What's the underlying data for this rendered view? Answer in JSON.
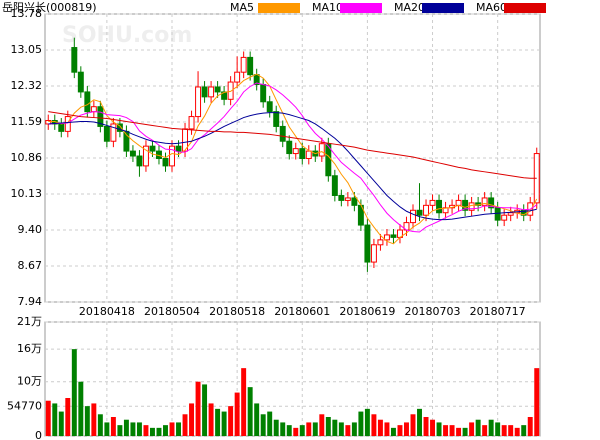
{
  "chart_data": [
    {
      "type": "candlestick",
      "title": "岳阳兴长(000819)",
      "watermark": "SOHU.com",
      "categories": [
        null,
        null,
        null,
        null,
        null,
        null,
        null,
        null,
        null,
        "20180418",
        null,
        null,
        null,
        null,
        null,
        null,
        null,
        null,
        null,
        "20180504",
        null,
        null,
        null,
        null,
        null,
        null,
        null,
        null,
        null,
        "20180518",
        null,
        null,
        null,
        null,
        null,
        null,
        null,
        null,
        null,
        "20180601",
        null,
        null,
        null,
        null,
        null,
        null,
        null,
        null,
        null,
        "20180619",
        null,
        null,
        null,
        null,
        null,
        null,
        null,
        null,
        null,
        "20180703",
        null,
        null,
        null,
        null,
        null,
        null,
        null,
        null,
        null,
        "20180717",
        null,
        null,
        null,
        null,
        null,
        null
      ],
      "open": [
        11.55,
        11.62,
        11.55,
        11.4,
        13.1,
        12.6,
        12.2,
        11.8,
        11.9,
        11.5,
        11.2,
        11.55,
        11.4,
        11.0,
        10.9,
        10.7,
        11.1,
        11.0,
        10.85,
        10.7,
        11.1,
        11.0,
        11.45,
        11.7,
        12.3,
        12.1,
        12.3,
        12.2,
        12.05,
        12.4,
        12.6,
        12.9,
        12.55,
        12.35,
        12.0,
        11.8,
        11.5,
        11.2,
        10.95,
        11.05,
        10.85,
        11.0,
        10.9,
        11.15,
        10.5,
        10.1,
        10.0,
        10.05,
        9.9,
        9.5,
        8.75,
        9.1,
        9.2,
        9.3,
        9.25,
        9.4,
        9.55,
        9.8,
        9.7,
        9.9,
        10.0,
        9.75,
        9.85,
        9.9,
        10.0,
        9.8,
        9.95,
        9.9,
        10.05,
        9.85,
        9.6,
        9.7,
        9.75,
        9.8,
        9.7,
        9.95
      ],
      "high": [
        11.74,
        11.74,
        11.67,
        11.82,
        13.3,
        12.72,
        12.32,
        12.02,
        12.02,
        11.62,
        11.67,
        11.67,
        11.52,
        11.12,
        11.02,
        11.22,
        11.22,
        11.12,
        10.97,
        11.22,
        11.22,
        11.57,
        11.82,
        12.62,
        12.42,
        12.42,
        12.42,
        12.32,
        12.52,
        12.92,
        13.02,
        13.02,
        12.67,
        12.47,
        12.12,
        11.92,
        11.62,
        11.32,
        11.17,
        11.17,
        11.12,
        11.12,
        11.27,
        11.27,
        10.62,
        10.22,
        10.17,
        10.17,
        10.02,
        9.62,
        9.22,
        9.32,
        9.42,
        9.42,
        9.52,
        9.67,
        9.92,
        10.35,
        10.02,
        10.12,
        10.12,
        9.97,
        10.02,
        10.12,
        10.12,
        10.07,
        10.07,
        10.17,
        10.17,
        9.97,
        9.82,
        9.87,
        9.92,
        9.92,
        10.07,
        11.07
      ],
      "low": [
        11.43,
        11.43,
        11.28,
        11.28,
        12.48,
        12.08,
        11.68,
        11.68,
        11.38,
        11.08,
        11.08,
        11.28,
        10.88,
        10.78,
        10.48,
        10.58,
        10.88,
        10.73,
        10.58,
        10.58,
        10.88,
        10.88,
        11.33,
        11.58,
        11.98,
        11.98,
        12.08,
        11.93,
        11.93,
        12.28,
        12.48,
        12.43,
        12.23,
        11.88,
        11.68,
        11.38,
        11.08,
        10.83,
        10.83,
        10.73,
        10.73,
        10.78,
        10.78,
        10.38,
        9.98,
        9.88,
        9.88,
        9.78,
        9.38,
        8.55,
        8.63,
        8.98,
        9.08,
        9.13,
        9.13,
        9.28,
        9.43,
        9.58,
        9.58,
        9.78,
        9.63,
        9.63,
        9.73,
        9.78,
        9.68,
        9.68,
        9.78,
        9.78,
        9.73,
        9.48,
        9.48,
        9.58,
        9.63,
        9.58,
        9.58,
        9.83
      ],
      "close": [
        11.62,
        11.55,
        11.4,
        11.7,
        12.6,
        12.2,
        11.8,
        11.9,
        11.5,
        11.2,
        11.55,
        11.4,
        11.0,
        10.9,
        10.7,
        11.1,
        11.0,
        10.85,
        10.7,
        11.1,
        11.0,
        11.45,
        11.7,
        12.3,
        12.1,
        12.3,
        12.2,
        12.05,
        12.4,
        12.6,
        12.9,
        12.55,
        12.35,
        12.0,
        11.8,
        11.5,
        11.2,
        10.95,
        11.05,
        10.85,
        11.0,
        10.9,
        11.15,
        10.5,
        10.1,
        10.0,
        10.05,
        9.9,
        9.5,
        8.75,
        9.1,
        9.2,
        9.3,
        9.25,
        9.4,
        9.55,
        9.8,
        9.7,
        9.9,
        10.0,
        9.75,
        9.85,
        9.9,
        10.0,
        9.8,
        9.95,
        9.9,
        10.05,
        9.85,
        9.6,
        9.7,
        9.75,
        9.8,
        9.7,
        9.95,
        10.95
      ],
      "up_color": "#ff0000",
      "down_color": "#008000",
      "series": [
        {
          "name": "MA5",
          "color": "#ff9900",
          "values": [
            11.6,
            11.6,
            11.55,
            11.58,
            11.77,
            11.89,
            11.94,
            12.04,
            12.0,
            11.72,
            11.59,
            11.51,
            11.33,
            11.21,
            11.11,
            11.02,
            10.94,
            10.91,
            10.87,
            10.95,
            10.93,
            11.02,
            11.19,
            11.51,
            11.71,
            11.97,
            12.12,
            12.19,
            12.21,
            12.31,
            12.43,
            12.5,
            12.56,
            12.48,
            12.32,
            12.04,
            11.77,
            11.49,
            11.3,
            11.11,
            11.01,
            10.95,
            10.99,
            10.9,
            10.74,
            10.53,
            10.36,
            10.11,
            9.91,
            9.64,
            9.46,
            9.29,
            9.17,
            9.12,
            9.25,
            9.34,
            9.46,
            9.54,
            9.67,
            9.79,
            9.83,
            9.84,
            9.86,
            9.9,
            9.86,
            9.9,
            9.91,
            9.94,
            9.91,
            9.87,
            9.83,
            9.79,
            9.74,
            9.71,
            9.78,
            10.03
          ]
        },
        {
          "name": "MA10",
          "color": "#ff00ff",
          "values": [
            11.55,
            11.56,
            11.56,
            11.57,
            11.65,
            11.73,
            11.77,
            11.8,
            11.79,
            11.74,
            11.73,
            11.72,
            11.68,
            11.6,
            11.41,
            11.3,
            11.22,
            11.12,
            11.04,
            11.03,
            10.98,
            10.98,
            11.05,
            11.23,
            11.33,
            11.45,
            11.57,
            11.7,
            11.86,
            12.01,
            12.2,
            12.31,
            12.38,
            12.35,
            12.32,
            12.24,
            12.14,
            12.02,
            11.89,
            11.72,
            11.52,
            11.36,
            11.24,
            11.1,
            10.93,
            10.77,
            10.66,
            10.55,
            10.45,
            10.27,
            10.1,
            9.91,
            9.74,
            9.61,
            9.5,
            9.4,
            9.37,
            9.36,
            9.46,
            9.52,
            9.58,
            9.65,
            9.71,
            9.78,
            9.83,
            9.83,
            9.84,
            9.89,
            9.88,
            9.86,
            9.85,
            9.85,
            9.84,
            9.81,
            9.82,
            9.91
          ]
        },
        {
          "name": "MA20",
          "color": "#000099",
          "values": [
            11.55,
            11.56,
            11.57,
            11.58,
            11.59,
            11.6,
            11.6,
            11.59,
            11.56,
            11.52,
            11.48,
            11.44,
            11.4,
            11.34,
            11.29,
            11.24,
            11.2,
            11.18,
            11.16,
            11.15,
            11.16,
            11.18,
            11.2,
            11.25,
            11.3,
            11.36,
            11.43,
            11.5,
            11.56,
            11.62,
            11.68,
            11.72,
            11.75,
            11.77,
            11.78,
            11.78,
            11.77,
            11.74,
            11.7,
            11.66,
            11.62,
            11.55,
            11.46,
            11.36,
            11.26,
            11.14,
            11.0,
            10.85,
            10.7,
            10.55,
            10.4,
            10.25,
            10.1,
            9.98,
            9.87,
            9.78,
            9.72,
            9.67,
            9.64,
            9.62,
            9.61,
            9.61,
            9.62,
            9.64,
            9.66,
            9.68,
            9.7,
            9.72,
            9.73,
            9.74,
            9.75,
            9.76,
            9.77,
            9.78,
            9.79,
            9.82
          ]
        },
        {
          "name": "MA60",
          "color": "#dd0000",
          "values": [
            11.8,
            11.78,
            11.76,
            11.74,
            11.72,
            11.7,
            11.69,
            11.68,
            11.67,
            11.66,
            11.64,
            11.62,
            11.6,
            11.58,
            11.56,
            11.54,
            11.52,
            11.5,
            11.48,
            11.46,
            11.45,
            11.44,
            11.43,
            11.42,
            11.41,
            11.4,
            11.4,
            11.39,
            11.39,
            11.38,
            11.38,
            11.37,
            11.36,
            11.35,
            11.34,
            11.32,
            11.3,
            11.28,
            11.26,
            11.24,
            11.22,
            11.2,
            11.18,
            11.16,
            11.14,
            11.12,
            11.1,
            11.08,
            11.05,
            11.02,
            11.0,
            10.98,
            10.96,
            10.94,
            10.92,
            10.9,
            10.88,
            10.85,
            10.82,
            10.79,
            10.76,
            10.73,
            10.7,
            10.67,
            10.65,
            10.62,
            10.6,
            10.58,
            10.56,
            10.54,
            10.52,
            10.5,
            10.48,
            10.46,
            10.45,
            10.45
          ]
        }
      ],
      "ylim": [
        7.94,
        13.78
      ],
      "yticks": [
        13.78,
        13.05,
        12.32,
        11.59,
        10.86,
        10.13,
        {
          "value": 9.4,
          "label": "9.40"
        },
        8.67,
        7.94
      ],
      "grid": true
    },
    {
      "type": "bar",
      "values": [
        65000,
        60000,
        45000,
        70000,
        160000,
        100000,
        55000,
        60000,
        40000,
        25000,
        35000,
        20000,
        30000,
        25000,
        25000,
        20000,
        15000,
        15000,
        20000,
        25000,
        25000,
        40000,
        60000,
        100000,
        95000,
        60000,
        50000,
        45000,
        55000,
        80000,
        125000,
        90000,
        60000,
        40000,
        45000,
        30000,
        25000,
        20000,
        15000,
        20000,
        25000,
        25000,
        40000,
        35000,
        30000,
        25000,
        20000,
        25000,
        45000,
        50000,
        40000,
        30000,
        25000,
        15000,
        20000,
        25000,
        40000,
        50000,
        35000,
        30000,
        25000,
        20000,
        20000,
        15000,
        15000,
        25000,
        30000,
        20000,
        30000,
        25000,
        20000,
        20000,
        15000,
        20000,
        35000,
        125000
      ],
      "ylim": [
        0,
        210000
      ],
      "yticks": [
        {
          "value": 210000,
          "label": "21万"
        },
        {
          "value": 160000,
          "label": "16万"
        },
        {
          "value": 100000,
          "label": "10万"
        },
        54770,
        0
      ],
      "grid": true
    }
  ]
}
